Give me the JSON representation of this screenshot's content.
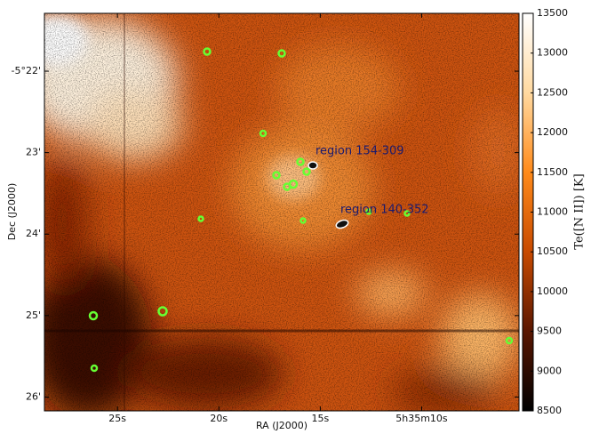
{
  "chart_data": {
    "type": "image",
    "x_label": "RA (J2000)",
    "y_label": "Dec (J2000)",
    "xlim": [
      28.6,
      5.2
    ],
    "xticks": [
      {
        "value": 25,
        "label": "25s"
      },
      {
        "value": 20,
        "label": "20s"
      },
      {
        "value": 15,
        "label": "15s"
      },
      {
        "value": 10,
        "label": "5h35m10s"
      }
    ],
    "ylim": [
      21.29,
      26.17
    ],
    "yticks": [
      {
        "value": 22,
        "label": "-5°22'"
      },
      {
        "value": 23,
        "label": "23'"
      },
      {
        "value": 24,
        "label": "24'"
      },
      {
        "value": 25,
        "label": "25'"
      },
      {
        "value": 26,
        "label": "26'"
      }
    ],
    "colorbar": {
      "label": "Te([N II]) [K]",
      "lim": [
        8500,
        13500
      ],
      "ticks": [
        8500,
        9000,
        9500,
        10000,
        10500,
        11000,
        11500,
        12000,
        12500,
        13000,
        13500
      ],
      "colors": [
        "#000000",
        "#5a1600",
        "#c84a00",
        "#ff8a1a",
        "#ffd9a0",
        "#ffffff"
      ]
    },
    "annotations": [
      "region 154-309",
      "region 140-352"
    ]
  }
}
